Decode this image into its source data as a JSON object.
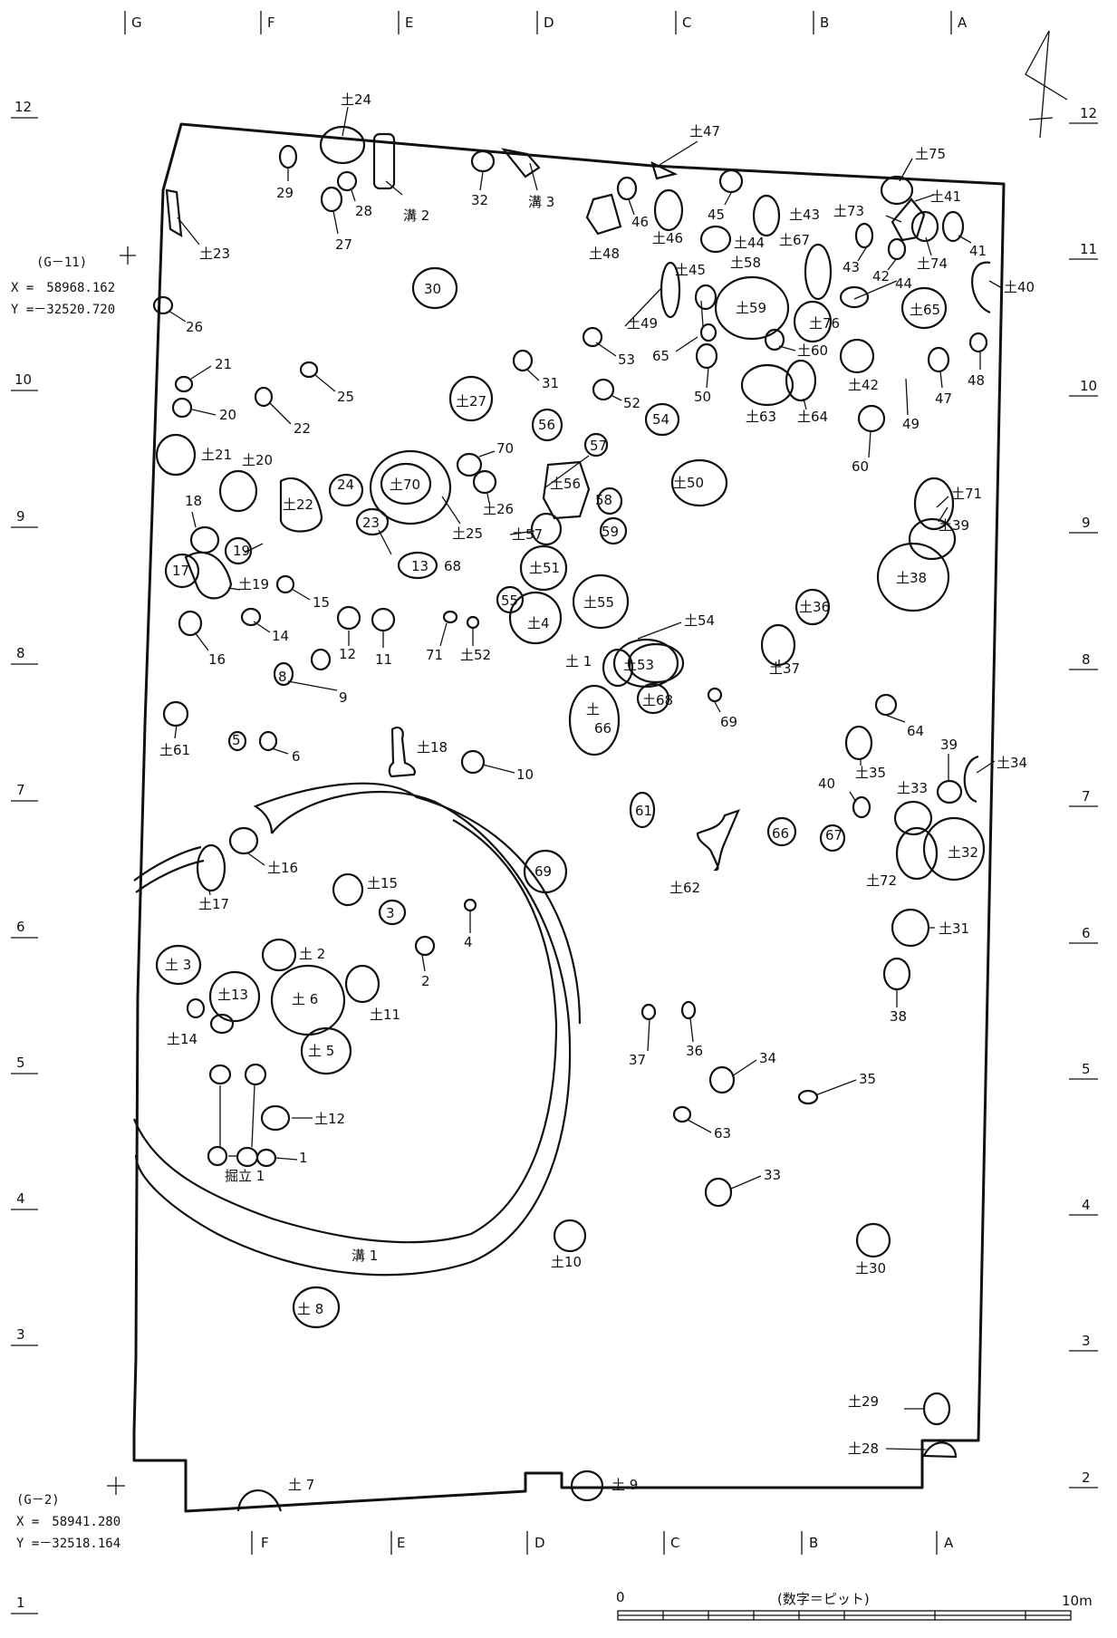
{
  "top_grid_letters": [
    "G",
    "F",
    "E",
    "D",
    "C",
    "B",
    "A"
  ],
  "bottom_grid_letters": [
    "F",
    "E",
    "D",
    "C",
    "B",
    "A"
  ],
  "row_numbers_left": [
    "12",
    "11",
    "10",
    "9",
    "8",
    "7",
    "6",
    "5",
    "4",
    "3",
    "2",
    "1"
  ],
  "row_numbers_right": [
    "12",
    "11",
    "10",
    "9",
    "8",
    "7",
    "6",
    "5",
    "4",
    "3",
    "2"
  ],
  "survey_point_top": {
    "label": "(G－11)",
    "x": "X =　58968.162",
    "y": "Y =－32520.720"
  },
  "survey_point_bottom": {
    "label": "(G－2)",
    "x": "X =　58941.280",
    "y": "Y =－32518.164"
  },
  "scale": {
    "start": "0",
    "end": "10m",
    "note": "(数字＝ピット)"
  },
  "labels": {
    "d24": "土24",
    "p29": "29",
    "p28": "28",
    "p27": "27",
    "ditch2": "溝 2",
    "p32": "32",
    "ditch3": "溝 3",
    "d47": "土47",
    "d75": "土75",
    "d41": "土41",
    "p41": "41",
    "d74": "土74",
    "d73": "土73",
    "d43": "土43",
    "p43": "43",
    "p42": "42",
    "p46": "46",
    "d46": "土46",
    "p45": "45",
    "d44": "土44",
    "d48": "土48",
    "d45": "土45",
    "d58": "土58",
    "d67": "土67",
    "d59": "土59",
    "d49": "土49",
    "p44": "44",
    "d65": "土65",
    "d40": "土40",
    "d76": "土76",
    "d23": "土23",
    "p30": "30",
    "p26": "26",
    "p53": "53",
    "p65": "65",
    "d60": "土60",
    "p48": "48",
    "p50": "50",
    "p47": "47",
    "p21": "21",
    "p25": "25",
    "p31": "31",
    "p52": "52",
    "d42": "土42",
    "p20": "20",
    "p22": "22",
    "d27": "土27",
    "p56": "56",
    "p54": "54",
    "d63": "土63",
    "d64": "土64",
    "p49": "49",
    "p57": "57",
    "p70": "70",
    "d21": "土21",
    "d20": "土20",
    "p60": "60",
    "d70": "土70",
    "d56": "土56",
    "p58": "58",
    "d50": "土50",
    "p24": "24",
    "d22": "土22",
    "d26": "土26",
    "d71": "土71",
    "p18": "18",
    "p23": "23",
    "d25": "土25",
    "d57": "土57",
    "p59": "59",
    "d39": "土39",
    "p19": "19",
    "p17": "17",
    "p13": "13",
    "p68": "68",
    "d51": "土51",
    "d38": "土38",
    "d19": "土19",
    "p15": "15",
    "p55": "55",
    "d55": "土55",
    "d36": "土36",
    "p14": "14",
    "p12": "12",
    "p11": "11",
    "d4": "土4",
    "p16": "16",
    "p71": "71",
    "d52": "土52",
    "d54": "土54",
    "d1": "土 1",
    "d53": "土53",
    "d37": "土37",
    "p8": "8",
    "p9": "9",
    "d68": "土68",
    "d66_a": "土",
    "d66_b": "66",
    "p69": "69",
    "p64": "64",
    "d61": "土61",
    "p5": "5",
    "p6": "6",
    "d18": "土18",
    "p10": "10",
    "d35": "土35",
    "p39": "39",
    "d34": "土34",
    "p40": "40",
    "d33": "土33",
    "p61": "61",
    "p66": "66",
    "p67": "67",
    "d32": "土32",
    "d16": "土16",
    "p69b": "69",
    "d62": "土62",
    "d72": "土72",
    "d15": "土15",
    "p3": "3",
    "d17": "土17",
    "p4": "4",
    "d31": "土31",
    "d3": "土 3",
    "d2": "土 2",
    "p2": "2",
    "d13": "土13",
    "d6": "土 6",
    "d11": "土11",
    "p38": "38",
    "d14": "土14",
    "p37": "37",
    "p36": "36",
    "d5": "土 5",
    "p34": "34",
    "p35": "35",
    "d12": "土12",
    "p63": "63",
    "p1": "1",
    "pillar1": "掘立 1",
    "p33": "33",
    "ditch1": "溝 1",
    "d10": "土10",
    "d30": "土30",
    "d8": "土 8",
    "d29": "土29",
    "d28": "土28",
    "d7": "土 7",
    "d9": "土 9"
  }
}
